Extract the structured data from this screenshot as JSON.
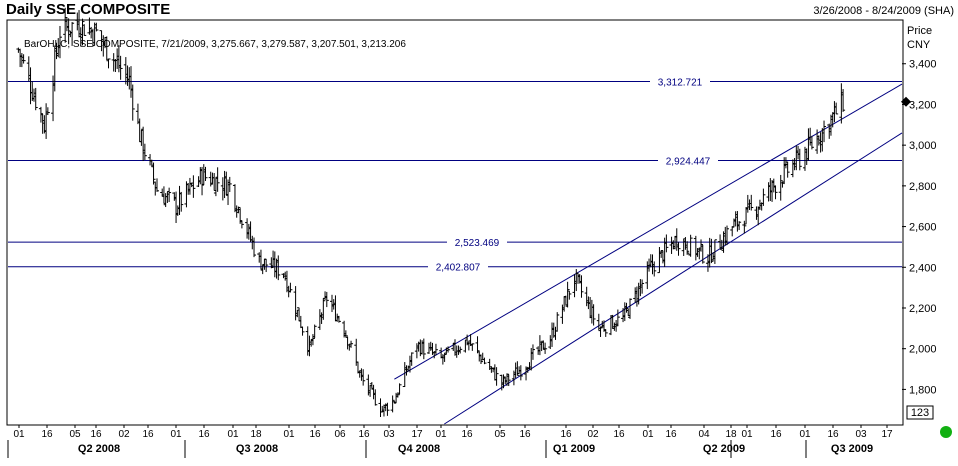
{
  "header": {
    "title": "Daily SSE COMPOSITE",
    "date_range": "3/26/2008 - 8/24/2009 (SHA)",
    "ohlc_info": "BarOHLC, SSE COMPOSITE, 7/21/2009, 3,275.667, 3,279.587, 3,207.501, 3,213.206",
    "y_unit_line1": "Price",
    "y_unit_line2": "CNY",
    "corner_label": "123"
  },
  "chart_data": {
    "type": "ohlc",
    "title": "Daily SSE COMPOSITE",
    "date_range": "3/26/2008 - 8/24/2009",
    "ylabel": "Price CNY",
    "ylim": [
      1630,
      3610
    ],
    "y_ticks": [
      1800,
      2000,
      2200,
      2400,
      2600,
      2800,
      3000,
      3200,
      3400
    ],
    "y_tick_labels": [
      "1,800",
      "2,000",
      "2,200",
      "2,400",
      "2,600",
      "2,800",
      "3,000",
      "3,200",
      "3,400"
    ],
    "last_price": 3213.206,
    "x_day_labels": [
      "01",
      "16",
      "05",
      "16",
      "02",
      "16",
      "01",
      "16",
      "01",
      "18",
      "01",
      "16",
      "06",
      "16",
      "03",
      "17",
      "01",
      "16",
      "05",
      "16",
      "16",
      "02",
      "16",
      "01",
      "16",
      "04",
      "18",
      "01",
      "16",
      "01",
      "16",
      "03",
      "17"
    ],
    "x_quarter_labels": [
      "Q2 2008",
      "Q3 2008",
      "Q4 2008",
      "Q1 2009",
      "Q2 2009",
      "Q3 2009"
    ],
    "horizontal_levels": [
      {
        "value": 3312.721,
        "label": "3,312.721"
      },
      {
        "value": 2924.447,
        "label": "2,924.447"
      },
      {
        "value": 2523.469,
        "label": "2,523.469"
      },
      {
        "value": 2402.807,
        "label": "2,402.807"
      }
    ],
    "trend_channel": [
      {
        "start": [
          "2008-11-04",
          1850
        ],
        "end": [
          "2009-08-24",
          3300
        ]
      },
      {
        "start": [
          "2008-12-01",
          1620
        ],
        "end": [
          "2009-08-24",
          3060
        ]
      }
    ],
    "closes": [
      {
        "date": "2008-04-01",
        "close": 3470
      },
      {
        "date": "2008-04-16",
        "close": 3100
      },
      {
        "date": "2008-04-25",
        "close": 3560
      },
      {
        "date": "2008-05-05",
        "close": 3600
      },
      {
        "date": "2008-05-16",
        "close": 3550
      },
      {
        "date": "2008-05-28",
        "close": 3400
      },
      {
        "date": "2008-06-04",
        "close": 3320
      },
      {
        "date": "2008-06-10",
        "close": 3050
      },
      {
        "date": "2008-06-20",
        "close": 2780
      },
      {
        "date": "2008-07-01",
        "close": 2700
      },
      {
        "date": "2008-07-16",
        "close": 2850
      },
      {
        "date": "2008-08-01",
        "close": 2800
      },
      {
        "date": "2008-08-18",
        "close": 2430
      },
      {
        "date": "2008-09-01",
        "close": 2380
      },
      {
        "date": "2008-09-16",
        "close": 2000
      },
      {
        "date": "2008-09-26",
        "close": 2250
      },
      {
        "date": "2008-10-06",
        "close": 2100
      },
      {
        "date": "2008-10-16",
        "close": 1850
      },
      {
        "date": "2008-10-28",
        "close": 1700
      },
      {
        "date": "2008-11-04",
        "close": 1750
      },
      {
        "date": "2008-11-17",
        "close": 2020
      },
      {
        "date": "2008-12-01",
        "close": 1950
      },
      {
        "date": "2008-12-16",
        "close": 2040
      },
      {
        "date": "2009-01-05",
        "close": 1830
      },
      {
        "date": "2009-01-16",
        "close": 1900
      },
      {
        "date": "2009-02-02",
        "close": 2050
      },
      {
        "date": "2009-02-16",
        "close": 2350
      },
      {
        "date": "2009-03-02",
        "close": 2100
      },
      {
        "date": "2009-03-16",
        "close": 2150
      },
      {
        "date": "2009-04-01",
        "close": 2400
      },
      {
        "date": "2009-04-16",
        "close": 2540
      },
      {
        "date": "2009-05-04",
        "close": 2450
      },
      {
        "date": "2009-05-18",
        "close": 2600
      },
      {
        "date": "2009-06-01",
        "close": 2700
      },
      {
        "date": "2009-06-16",
        "close": 2850
      },
      {
        "date": "2009-07-01",
        "close": 2980
      },
      {
        "date": "2009-07-16",
        "close": 3150
      },
      {
        "date": "2009-07-21",
        "close": 3213
      }
    ]
  }
}
